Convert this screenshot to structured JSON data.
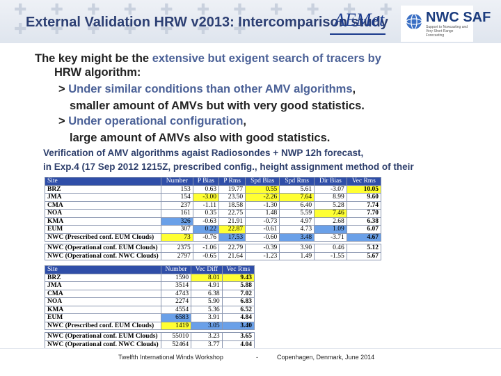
{
  "header": {
    "title": "External Validation HRW v2013: Intercomparison study",
    "logo_aemet_text": "AEMet",
    "logo_nwc_text": "NWC SAF",
    "logo_nwc_sub": "Support to Nowcasting and Very Short Range Forecasting"
  },
  "body": {
    "line1_a": "The key might be the ",
    "line1_b": "extensive but exigent search of tracers by",
    "line2": "HRW algorithm:",
    "line3_a": "> ",
    "line3_b": "Under similar conditions than other AMV algorithms",
    "line3_c": ",",
    "line4": "smaller amount of AMVs but with very good statistics.",
    "line5_a": "> ",
    "line5_b": "Under operational configuration",
    "line5_c": ",",
    "line6": "large amount of AMVs also with good statistics.",
    "ver1": "Verification of AMV algorithms agaist Radiosondes + NWP 12h forecast,",
    "ver2": "in Exp.4 (17 Sep 2012 1215Z, prescribed config., height assignment method of their"
  },
  "table1": {
    "headers": [
      "Site",
      "Number",
      "P Bias",
      "P Rms",
      "Spd Bias",
      "Spd Rms",
      "Dir Bias",
      "Vec Rms"
    ],
    "rows": [
      [
        "BRZ",
        "153",
        "0.63",
        "19.77",
        "0.55",
        "5.61",
        "-3.07",
        "10.05"
      ],
      [
        "JMA",
        "154",
        "-3.00",
        "23.50",
        "-2.26",
        "7.64",
        "8.99",
        "9.60"
      ],
      [
        "CMA",
        "237",
        "-1.11",
        "18.58",
        "-1.30",
        "6.40",
        "5.28",
        "7.74"
      ],
      [
        "NOA",
        "161",
        "0.35",
        "22.75",
        "1.48",
        "5.59",
        "7.46",
        "7.70"
      ],
      [
        "KMA",
        "326",
        "-0.63",
        "21.91",
        "-0.73",
        "4.97",
        "2.68",
        "6.38"
      ],
      [
        "EUM",
        "307",
        "0.22",
        "22.87",
        "-0.61",
        "4.73",
        "1.09",
        "6.07"
      ],
      [
        "NWC (Prescribed conf. EUM Clouds)",
        "73",
        "-0.76",
        "17.53",
        "-0.60",
        "3.48",
        "-3.71",
        "4.67"
      ],
      [
        "NWC (Operational conf. EUM Clouds)",
        "2375",
        "-1.06",
        "22.79",
        "-0.39",
        "3.90",
        "0.46",
        "5.12"
      ],
      [
        "NWC (Operational conf. NWC Clouds)",
        "2797",
        "-0.65",
        "21.64",
        "-1.23",
        "1.49",
        "-1.55",
        "5.67"
      ]
    ]
  },
  "table2": {
    "headers": [
      "Site",
      "Number",
      "Vec Diff",
      "Vec Rms"
    ],
    "rows": [
      [
        "BRZ",
        "1590",
        "8.01",
        "9.43"
      ],
      [
        "JMA",
        "3514",
        "4.91",
        "5.88"
      ],
      [
        "CMA",
        "4743",
        "6.38",
        "7.02"
      ],
      [
        "NOA",
        "2274",
        "5.90",
        "6.83"
      ],
      [
        "KMA",
        "4554",
        "5.36",
        "6.52"
      ],
      [
        "EUM",
        "6583",
        "3.91",
        "4.84"
      ],
      [
        "NWC (Prescribed conf. EUM Clouds)",
        "1419",
        "3.05",
        "3.40"
      ],
      [
        "NWC (Operational conf. EUM Clouds)",
        "55010",
        "3.23",
        "3.65"
      ],
      [
        "NWC (Operational conf. NWC Clouds)",
        "52464",
        "3.77",
        "4.04"
      ]
    ]
  },
  "footer": {
    "left": "Twelfth International Winds Workshop",
    "sep": "-",
    "right": "Copenhagen, Denmark, June 2014"
  },
  "colors": {
    "title": "#2c3f73",
    "highlight": "#4b6197",
    "table_header": "#2f4ea8",
    "yellow": "#ffff33",
    "blue": "#6aa0e8"
  }
}
